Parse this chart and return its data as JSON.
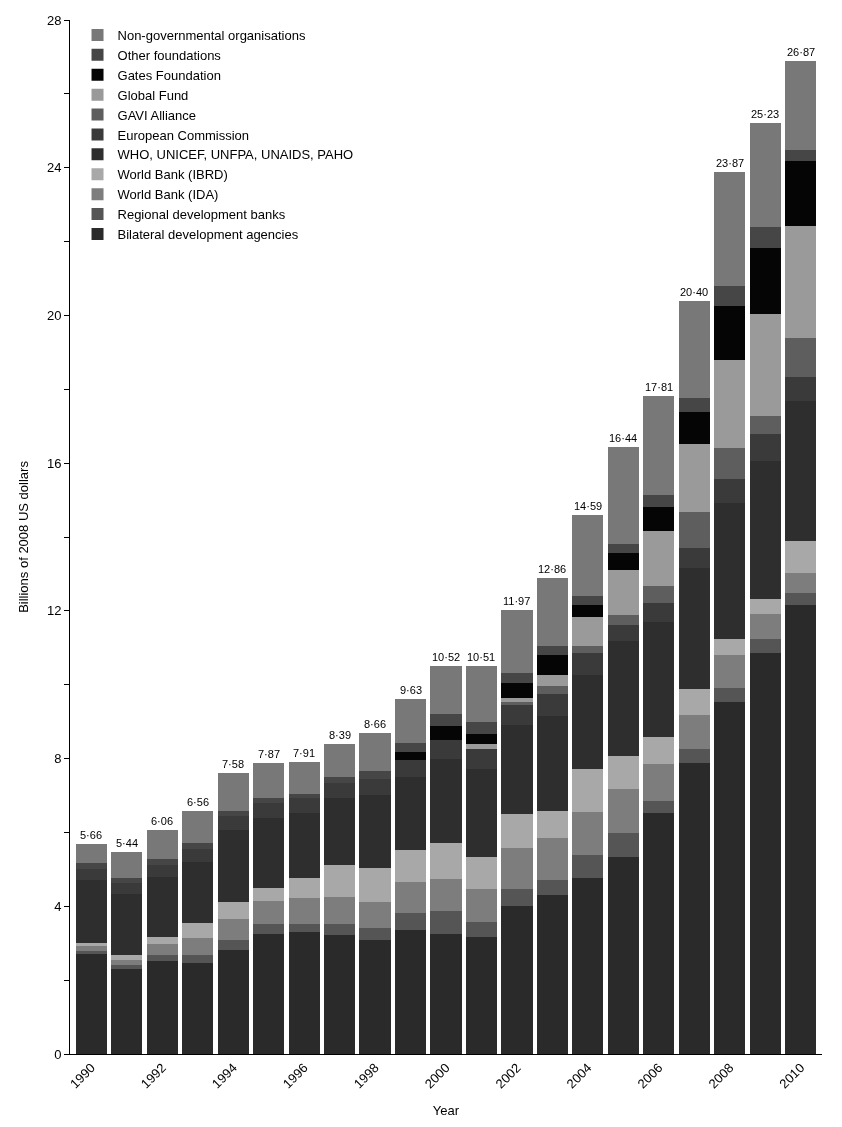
{
  "chart_data": {
    "type": "bar",
    "stacked": true,
    "xlabel": "Year",
    "ylabel": "Billions of 2008 US dollars",
    "categories": [
      "1990",
      null,
      "1992",
      null,
      "1994",
      null,
      "1996",
      null,
      "1998",
      null,
      "2000",
      null,
      "2002",
      null,
      "2004",
      null,
      "2006",
      null,
      "2008",
      null,
      "2010"
    ],
    "series": [
      {
        "name": "Bilateral development agencies",
        "color": "#2a2a2a",
        "values": [
          2.72,
          2.3,
          2.52,
          2.47,
          2.81,
          3.26,
          3.3,
          3.23,
          3.09,
          3.37,
          3.26,
          3.17,
          4.01,
          4.31,
          4.76,
          5.33,
          6.52,
          7.89,
          9.54,
          10.87,
          12.17
        ]
      },
      {
        "name": "Regional development banks",
        "color": "#555555",
        "values": [
          0.08,
          0.11,
          0.15,
          0.21,
          0.27,
          0.25,
          0.22,
          0.3,
          0.33,
          0.44,
          0.61,
          0.4,
          0.46,
          0.4,
          0.63,
          0.65,
          0.34,
          0.38,
          0.37,
          0.38,
          0.31
        ]
      },
      {
        "name": "World Bank (IDA)",
        "color": "#7d7d7d",
        "values": [
          0.12,
          0.13,
          0.3,
          0.45,
          0.58,
          0.64,
          0.7,
          0.72,
          0.7,
          0.86,
          0.88,
          0.91,
          1.1,
          1.14,
          1.16,
          1.2,
          1.0,
          0.92,
          0.89,
          0.66,
          0.54
        ]
      },
      {
        "name": "World Bank (IBRD)",
        "color": "#a8a8a8",
        "values": [
          0.09,
          0.13,
          0.2,
          0.42,
          0.45,
          0.34,
          0.54,
          0.88,
          0.93,
          0.85,
          0.96,
          0.86,
          0.94,
          0.74,
          1.17,
          0.88,
          0.73,
          0.69,
          0.43,
          0.41,
          0.87
        ]
      },
      {
        "name": "WHO, UNICEF, UNFPA, UNAIDS, PAHO",
        "color": "#2e2e2e",
        "values": [
          1.71,
          1.67,
          1.63,
          1.64,
          1.95,
          1.9,
          1.76,
          1.79,
          1.96,
          1.98,
          2.29,
          2.39,
          2.4,
          2.56,
          2.53,
          3.13,
          3.1,
          3.28,
          3.7,
          3.74,
          3.79
        ]
      },
      {
        "name": "European Commission",
        "color": "#3a3a3a",
        "values": [
          0.3,
          0.3,
          0.32,
          0.35,
          0.38,
          0.4,
          0.4,
          0.42,
          0.45,
          0.47,
          0.5,
          0.52,
          0.55,
          0.59,
          0.6,
          0.43,
          0.51,
          0.54,
          0.64,
          0.72,
          0.64
        ]
      },
      {
        "name": "GAVI Alliance",
        "color": "#5e5e5e",
        "values": [
          0,
          0,
          0,
          0,
          0,
          0,
          0,
          0,
          0,
          0,
          0,
          0,
          0.08,
          0.23,
          0.2,
          0.28,
          0.48,
          0.99,
          0.84,
          0.5,
          1.07
        ]
      },
      {
        "name": "Global Fund",
        "color": "#9a9a9a",
        "values": [
          0,
          0,
          0,
          0,
          0,
          0,
          0,
          0,
          0,
          0,
          0,
          0.14,
          0.09,
          0.28,
          0.78,
          1.22,
          1.48,
          1.83,
          2.39,
          2.75,
          3.03
        ]
      },
      {
        "name": "Gates Foundation",
        "color": "#050505",
        "values": [
          0,
          0,
          0,
          0,
          0,
          0,
          0,
          0,
          0,
          0.2,
          0.39,
          0.28,
          0.42,
          0.55,
          0.32,
          0.45,
          0.66,
          0.87,
          1.45,
          1.8,
          1.76
        ]
      },
      {
        "name": "Other foundations",
        "color": "#464646",
        "values": [
          0.15,
          0.13,
          0.15,
          0.18,
          0.15,
          0.15,
          0.13,
          0.17,
          0.2,
          0.25,
          0.31,
          0.33,
          0.28,
          0.25,
          0.26,
          0.25,
          0.32,
          0.38,
          0.54,
          0.57,
          0.31
        ]
      },
      {
        "name": "Non-governmental organisations",
        "color": "#787878",
        "values": [
          0.52,
          0.69,
          0.8,
          0.85,
          1.01,
          0.94,
          0.86,
          0.88,
          1.02,
          1.2,
          1.32,
          1.52,
          1.68,
          1.83,
          2.18,
          2.63,
          2.69,
          2.61,
          3.09,
          2.81,
          2.39
        ]
      }
    ],
    "totals": [
      "5·66",
      "5·44",
      "6·06",
      "6·56",
      "7·58",
      "7·87",
      "7·91",
      "8·39",
      "8·66",
      "9·63",
      "10·52",
      "10·51",
      "11·97",
      "12·86",
      "14·59",
      "16·44",
      "17·81",
      "20·40",
      "23·87",
      "25·23",
      "26·87"
    ],
    "ylim": [
      0,
      28
    ],
    "yticks": [
      0,
      {
        "value": 2,
        "label": null
      },
      4,
      {
        "value": 6,
        "label": null
      },
      8,
      {
        "value": 10,
        "label": null
      },
      12,
      {
        "value": 14,
        "label": null
      },
      16,
      {
        "value": 18,
        "label": null
      },
      20,
      {
        "value": 22,
        "label": null
      },
      24,
      {
        "value": 26,
        "label": null
      },
      28
    ],
    "legend": "top left"
  }
}
